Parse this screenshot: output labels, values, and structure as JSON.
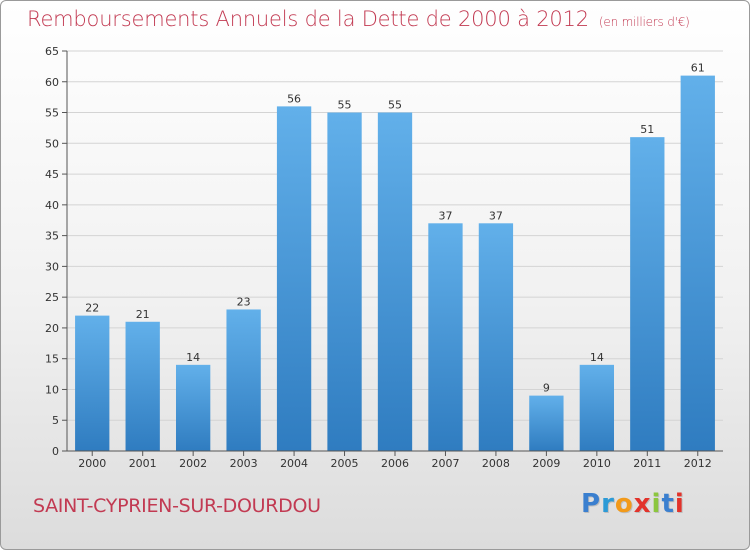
{
  "title": "Remboursements Annuels de la Dette de 2000 à 2012",
  "subtitle": "(en milliers d'€)",
  "commune": "SAINT-CYPRIEN-SUR-DOURDOU",
  "logo": {
    "text": "Proxiti",
    "letters": [
      "P",
      "r",
      "o",
      "x",
      "i",
      "t",
      "i"
    ],
    "colors": [
      "#3a7fcf",
      "#2c9ad6",
      "#f29a1a",
      "#e2332b",
      "#8cc63f",
      "#3a7fcf",
      "#e2332b"
    ]
  },
  "colors": {
    "bar_light": "#62b0ea",
    "bar_dark": "#2f7cc0",
    "title": "#c23a52",
    "grid": "#d4d4d4"
  },
  "chart_data": {
    "type": "bar",
    "title": "Remboursements Annuels de la Dette de 2000 à 2012",
    "subtitle": "(en milliers d'€)",
    "categories": [
      "2000",
      "2001",
      "2002",
      "2003",
      "2004",
      "2005",
      "2006",
      "2007",
      "2008",
      "2009",
      "2010",
      "2011",
      "2012"
    ],
    "values": [
      22,
      21,
      14,
      23,
      56,
      55,
      55,
      37,
      37,
      9,
      14,
      51,
      61
    ],
    "ylim": [
      0,
      65
    ],
    "yticks": [
      0,
      5,
      10,
      15,
      20,
      25,
      30,
      35,
      40,
      45,
      50,
      55,
      60,
      65
    ],
    "grid": "horizontal",
    "data_labels": true
  }
}
